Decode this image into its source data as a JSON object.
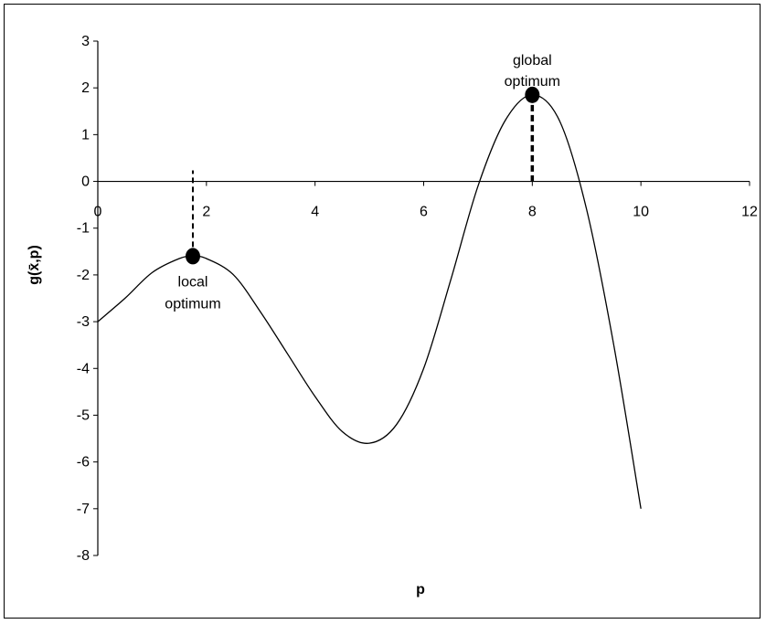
{
  "chart_data": {
    "type": "line",
    "title": "",
    "xlabel": "p",
    "ylabel": "g(x̄,p)",
    "xlim": [
      0,
      12
    ],
    "ylim": [
      -8,
      3
    ],
    "x_ticks": [
      0,
      2,
      4,
      6,
      8,
      10,
      12
    ],
    "y_ticks": [
      3,
      2,
      1,
      0,
      -1,
      -2,
      -3,
      -4,
      -5,
      -6,
      -7,
      -8
    ],
    "x_tick_labels": [
      "0",
      "2",
      "4",
      "6",
      "8",
      "10",
      "12"
    ],
    "y_tick_labels": [
      "3",
      "2",
      "1",
      "0",
      "-1",
      "-2",
      "-3",
      "-4",
      "-5",
      "-6",
      "-7",
      "-8"
    ],
    "grid": false,
    "series": [
      {
        "x": [
          0,
          0.5,
          1.0,
          1.5,
          1.75,
          2.0,
          2.5,
          3.0,
          3.5,
          4.0,
          4.5,
          5.0,
          5.5,
          6.0,
          6.5,
          7.0,
          7.5,
          8.0,
          8.5,
          9.0,
          9.5,
          10.0
        ],
        "y": [
          -3.0,
          -2.5,
          -1.95,
          -1.65,
          -1.6,
          -1.65,
          -2.0,
          -2.8,
          -3.7,
          -4.6,
          -5.35,
          -5.6,
          -5.2,
          -4.0,
          -2.1,
          -0.1,
          1.3,
          1.85,
          1.3,
          -0.6,
          -3.5,
          -7.0
        ]
      }
    ],
    "annotations": [
      {
        "x": 1.75,
        "y": -1.6,
        "label_line1": "local",
        "label_line2": "optimum"
      },
      {
        "x": 8.0,
        "y": 1.85,
        "label_line1": "global",
        "label_line2": "optimum"
      }
    ],
    "colors": {
      "line": "#000000",
      "marker": "#000000"
    }
  }
}
